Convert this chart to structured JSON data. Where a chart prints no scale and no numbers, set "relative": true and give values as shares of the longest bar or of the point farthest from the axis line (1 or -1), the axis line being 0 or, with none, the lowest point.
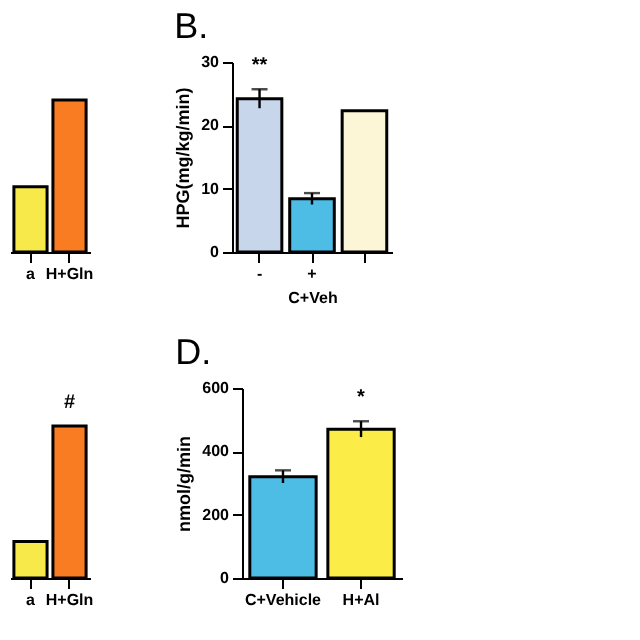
{
  "chart_data": [
    {
      "type": "bar",
      "relative": true,
      "categories": [
        "a",
        "H+Gln"
      ],
      "values": [
        0.43,
        1
      ],
      "colors": [
        "#f7e94a",
        "#f97c22"
      ]
    },
    {
      "type": "bar",
      "title": "B.",
      "ylabel": "HPG(mg/kg/min)",
      "xlabel": "C+Veh",
      "categories": [
        "-",
        "+",
        null
      ],
      "values": [
        24.2,
        8.4,
        22.3
      ],
      "errors": [
        1.5,
        0.9,
        null
      ],
      "colors": [
        "#c8d6ec",
        "#4dbde6",
        "#fdf6d6"
      ],
      "ylim": [
        0,
        30
      ],
      "yticks": [
        0,
        10,
        20,
        30
      ],
      "annotations": [
        "**"
      ]
    },
    {
      "type": "bar",
      "relative": true,
      "categories": [
        "a",
        "H+Gln"
      ],
      "values": [
        0.24,
        1
      ],
      "colors": [
        "#f7e94a",
        "#f97c22"
      ],
      "annotations": [
        "#"
      ]
    },
    {
      "type": "bar",
      "title": "D.",
      "ylabel": "nmol/g/min",
      "categories": [
        "C+Vehicle",
        "H+Al"
      ],
      "values": [
        320,
        470
      ],
      "errors": [
        20,
        25
      ],
      "colors": [
        "#4dbde6",
        "#fbec47"
      ],
      "ylim": [
        0,
        600
      ],
      "yticks": [
        0,
        200,
        400,
        600
      ],
      "annotations": [
        "*"
      ]
    }
  ]
}
